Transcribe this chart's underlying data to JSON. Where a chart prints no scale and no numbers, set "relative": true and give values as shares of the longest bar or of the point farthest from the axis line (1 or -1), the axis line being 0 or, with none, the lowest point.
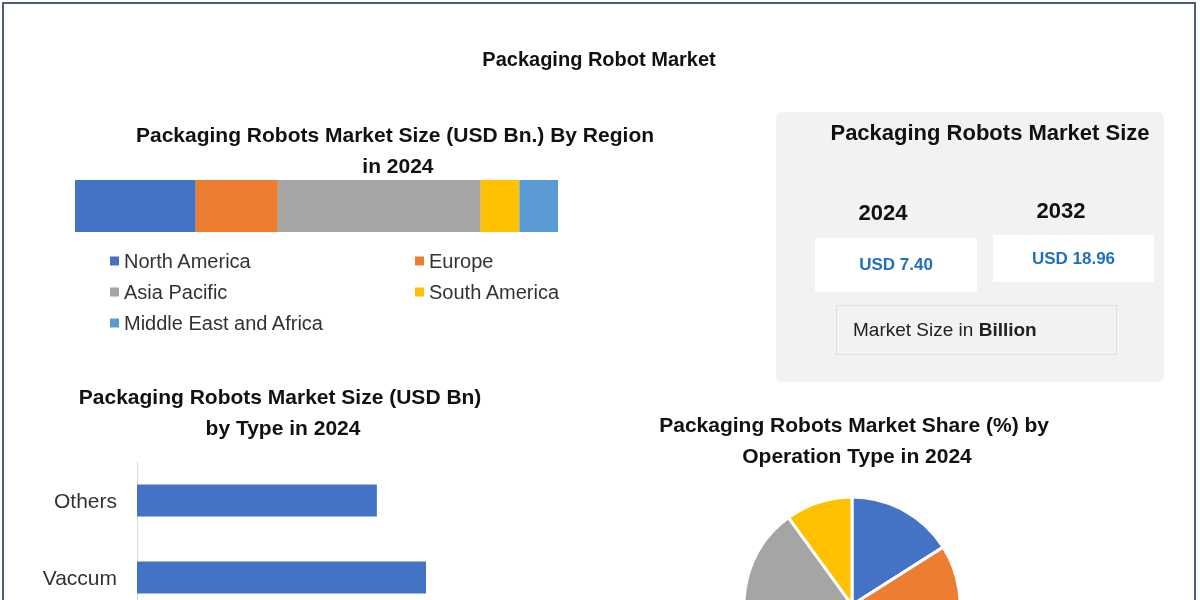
{
  "chart_data": [
    {
      "type": "bar",
      "title": "Packaging Robot Market",
      "subtitle": "Packaging Robots Market Size (USD Bn.) By Region in 2024",
      "orientation": "horizontal",
      "stacked": true,
      "relative": true,
      "legend": "bottom",
      "categories": [
        null
      ],
      "series": [
        {
          "name": "North America",
          "color": "#4472c4",
          "values": [
            0.25
          ]
        },
        {
          "name": "Europe",
          "color": "#ed7d31",
          "values": [
            0.17
          ]
        },
        {
          "name": "Asia Pacific",
          "color": "#a5a5a5",
          "values": [
            0.42
          ]
        },
        {
          "name": "South America",
          "color": "#ffc000",
          "values": [
            0.08
          ]
        },
        {
          "name": "Middle East and Africa",
          "color": "#5b9bd5",
          "values": [
            0.08
          ]
        }
      ]
    },
    {
      "type": "other",
      "title": "Packaging Robots Market Size",
      "categories": [
        "2024",
        "2032"
      ],
      "values": [
        7.4,
        18.96
      ],
      "value_labels": [
        "USD 7.40",
        "USD 18.96"
      ],
      "annotations": [
        "Market Size in Billion"
      ]
    },
    {
      "type": "bar",
      "title": "Packaging Robots Market Size (USD Bn) by Type in 2024",
      "orientation": "horizontal",
      "relative": true,
      "color": "#4472c4",
      "categories": [
        "Others",
        "Vaccum"
      ],
      "values": [
        0.83,
        1
      ]
    },
    {
      "type": "pie",
      "title": "Packaging Robots Market Share (%) by Operation Type in 2024",
      "categories": [
        null,
        null,
        null,
        null
      ],
      "values": [
        16,
        28,
        46,
        10
      ],
      "colors": [
        "#4472c4",
        "#ed7d31",
        "#a5a5a5",
        "#ffc000"
      ]
    }
  ]
}
